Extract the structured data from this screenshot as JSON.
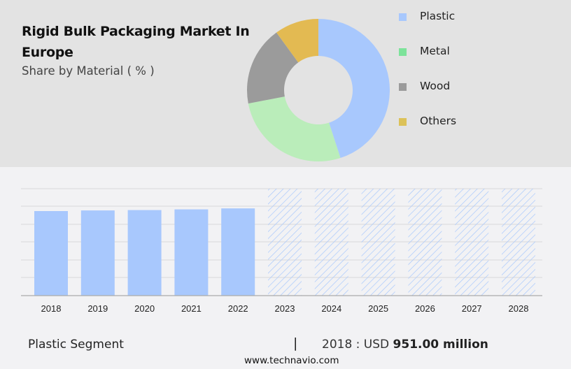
{
  "header": {
    "title": "Rigid Bulk Packaging Market In Europe",
    "subtitle": "Share by Material ( % )"
  },
  "legend": [
    {
      "label": "Plastic",
      "color": "#a8c8fd"
    },
    {
      "label": "Metal",
      "color": "#7de39a"
    },
    {
      "label": "Wood",
      "color": "#9b9b9b"
    },
    {
      "label": "Others",
      "color": "#dcc259"
    }
  ],
  "footer": {
    "segment": "Plastic Segment",
    "separator": "|",
    "value_prefix": "2018 : USD",
    "value": "951.00 million",
    "url": "www.technavio.com"
  },
  "chart_data": [
    {
      "type": "pie",
      "title": "Share by Material ( % )",
      "donut": true,
      "categories": [
        "Plastic",
        "Metal",
        "Wood",
        "Others"
      ],
      "values": [
        45,
        27,
        18,
        10
      ],
      "colors": [
        "#a8c8fd",
        "#baedba",
        "#9b9b9b",
        "#e3ba52"
      ],
      "legend_position": "right"
    },
    {
      "type": "bar",
      "title": "Plastic Segment",
      "categories": [
        "2018",
        "2019",
        "2020",
        "2021",
        "2022",
        "2023",
        "2024",
        "2025",
        "2026",
        "2027",
        "2028"
      ],
      "values": [
        951,
        958,
        962,
        970,
        981,
        null,
        null,
        null,
        null,
        null,
        null
      ],
      "forecast_categories": [
        "2023",
        "2024",
        "2025",
        "2026",
        "2027",
        "2028"
      ],
      "forecast_style": "hatched",
      "xlabel": "",
      "ylabel": "",
      "grid": true,
      "annotation": "2018 : USD 951.00 million"
    }
  ]
}
